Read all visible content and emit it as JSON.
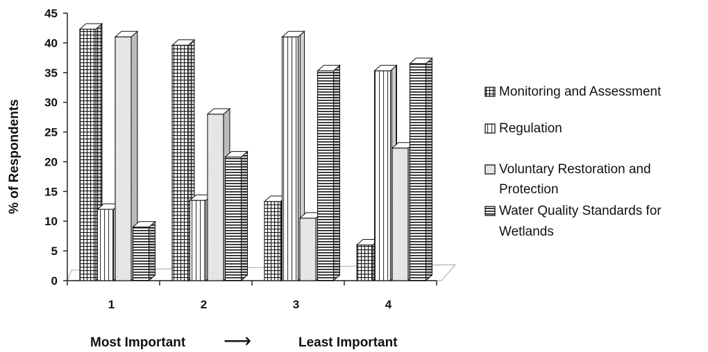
{
  "chart_data": {
    "type": "bar",
    "categories": [
      "1",
      "2",
      "3",
      "4"
    ],
    "series": [
      {
        "name": "Monitoring and Assessment",
        "name_lines": [
          "Monitoring and Assessment"
        ],
        "values": [
          42.3,
          39.6,
          13.3,
          6.0
        ],
        "pattern": "pat-grid"
      },
      {
        "name": "Regulation",
        "name_lines": [
          "Regulation"
        ],
        "values": [
          12.0,
          13.5,
          41.0,
          35.3
        ],
        "pattern": "pat-vert"
      },
      {
        "name": "Voluntary Restoration and Protection",
        "name_lines": [
          "Voluntary Restoration and",
          "Protection"
        ],
        "values": [
          41.0,
          28.0,
          10.5,
          22.3
        ],
        "pattern": "pat-dots"
      },
      {
        "name": "Water Quality Standards for Wetlands",
        "name_lines": [
          "Water Quality Standards for",
          "Wetlands"
        ],
        "values": [
          9.0,
          20.8,
          35.3,
          36.5
        ],
        "pattern": "pat-horiz"
      }
    ],
    "ylabel": "% of Respondents",
    "xlabel_left": "Most Important",
    "xlabel_right": "Least Important",
    "arrow_glyph": "⟶",
    "ylim": [
      0,
      45
    ],
    "yticks": [
      0,
      5,
      10,
      15,
      20,
      25,
      30,
      35,
      40,
      45
    ],
    "legend_position": "right",
    "style": "3d-column",
    "grid": false
  }
}
